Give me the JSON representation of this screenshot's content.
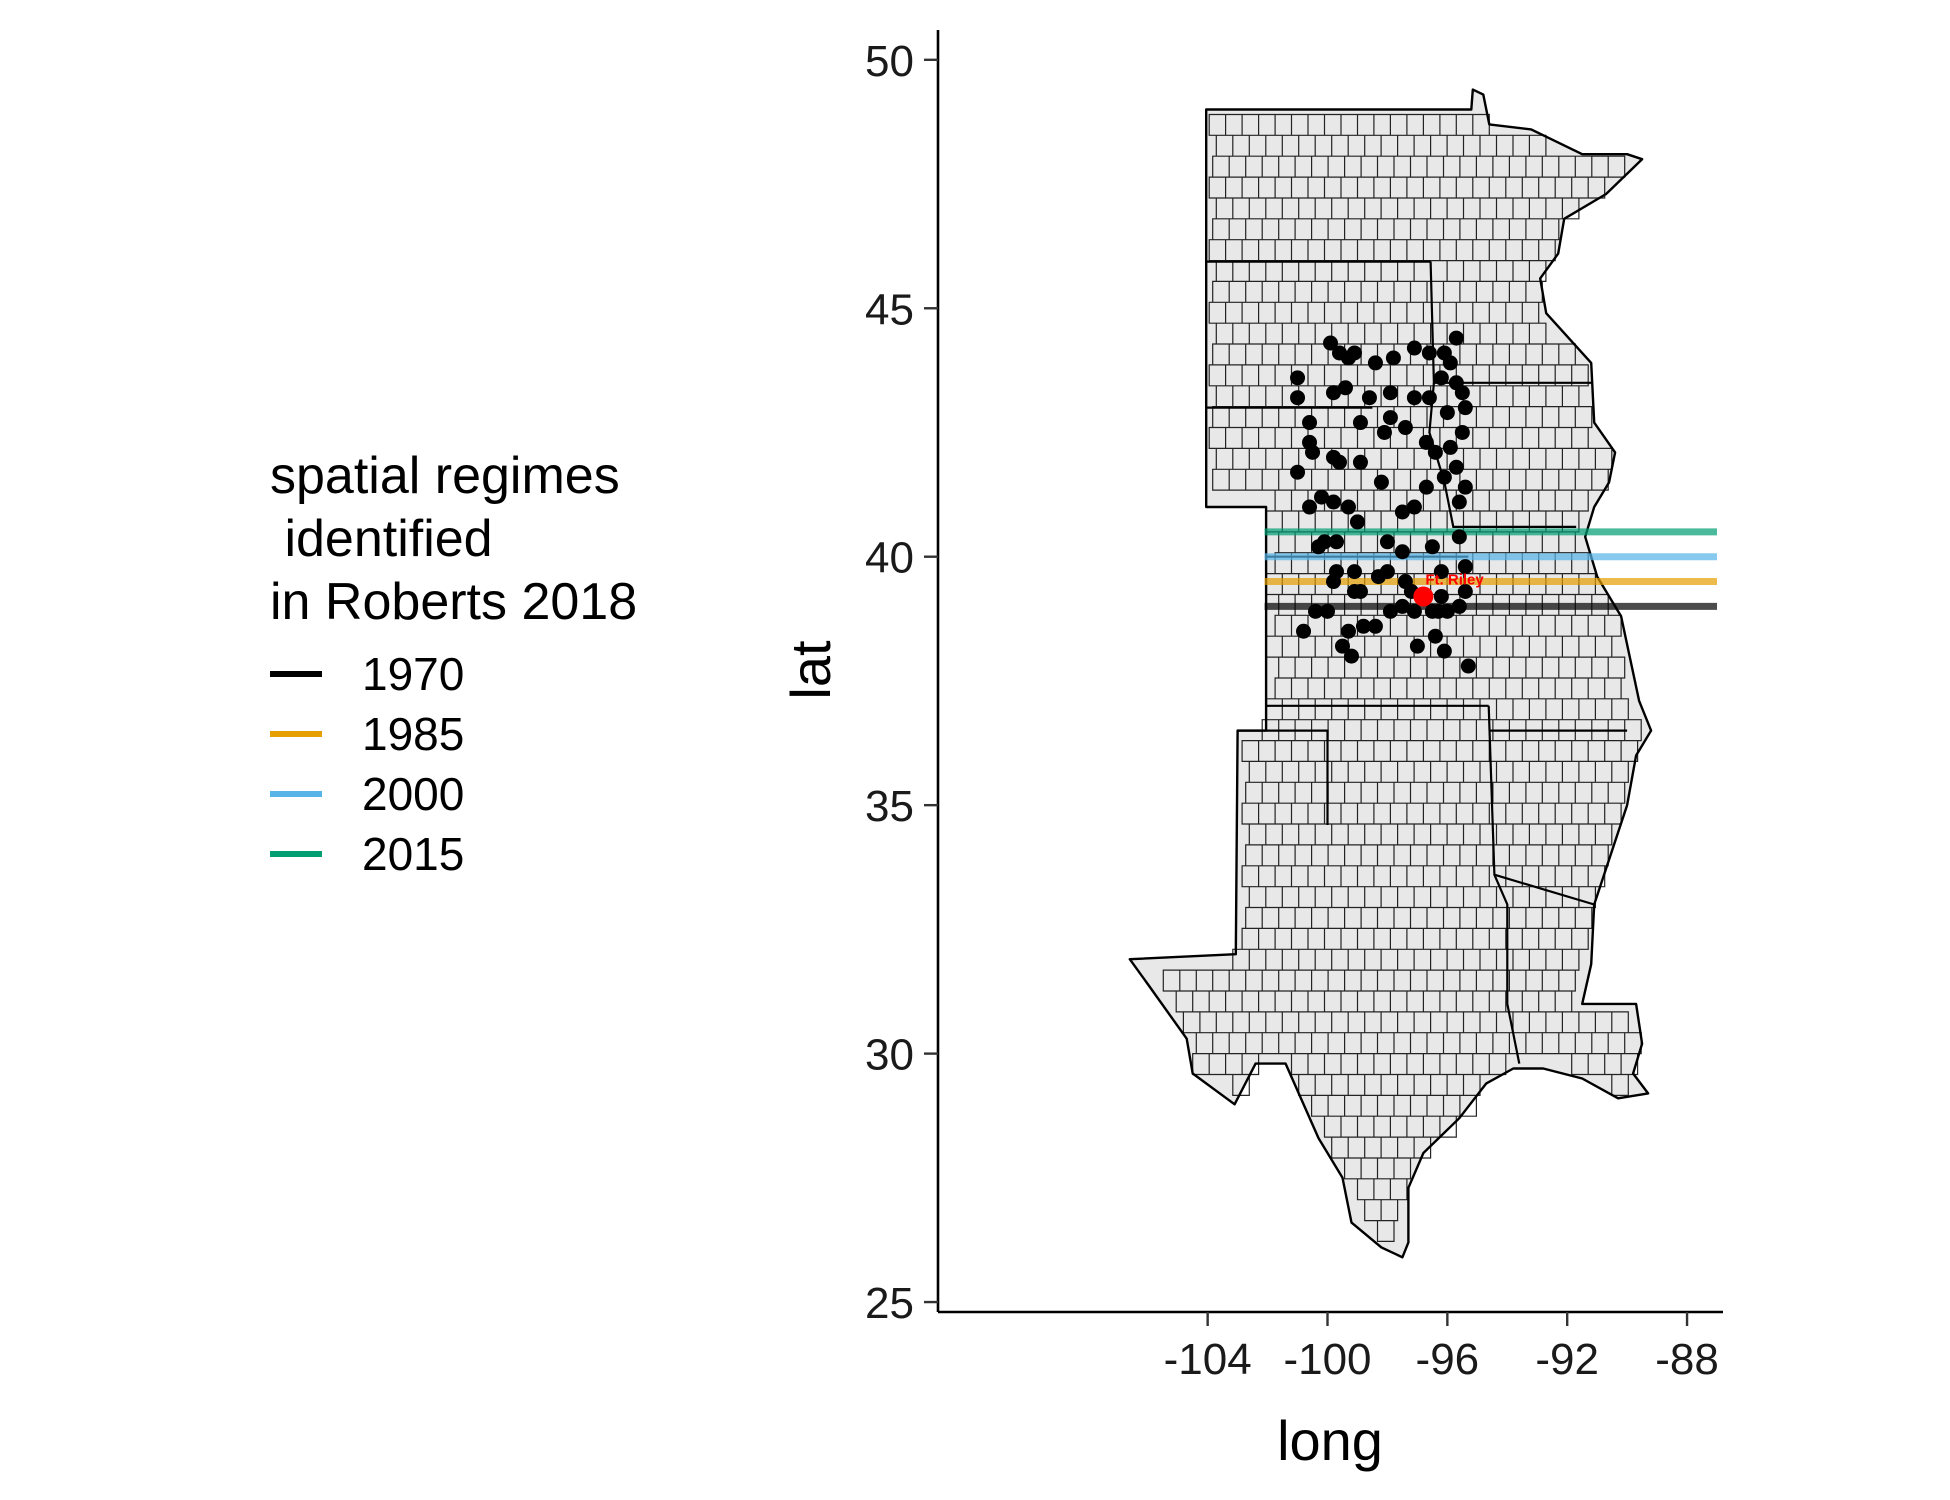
{
  "chart_data": {
    "type": "map",
    "xlabel": "long",
    "ylabel": "lat",
    "xlim": [
      -113.0,
      -86.8
    ],
    "ylim": [
      24.8,
      50.6
    ],
    "x_ticks": [
      -104,
      -100,
      -96,
      -92,
      -88
    ],
    "y_ticks": [
      25,
      30,
      35,
      40,
      45,
      50
    ],
    "x_tick_labels": [
      "-104",
      "-100",
      "-96",
      "-92",
      "-88"
    ],
    "y_tick_labels": [
      "25",
      "30",
      "35",
      "40",
      "45",
      "50"
    ],
    "legend": {
      "title": "spatial regimes\n identified\nin Roberts 2018",
      "placement": "left",
      "entries": [
        {
          "label": "1970",
          "color": "#000000"
        },
        {
          "label": "1985",
          "color": "#E69F00"
        },
        {
          "label": "2000",
          "color": "#56B4E9"
        },
        {
          "label": "2015",
          "color": "#009E73"
        }
      ]
    },
    "regime_lines": [
      {
        "year": "1970",
        "lat": 39.0,
        "color": "#000000"
      },
      {
        "year": "1985",
        "lat": 39.5,
        "color": "#E69F00"
      },
      {
        "year": "2000",
        "lat": 40.0,
        "color": "#56B4E9"
      },
      {
        "year": "2015",
        "lat": 40.5,
        "color": "#009E73"
      }
    ],
    "regime_line_xrange": [
      -102.1,
      -87.0
    ],
    "highlight_point": {
      "label": "Ft. Riley",
      "long": -96.8,
      "lat": 39.2,
      "color": "#FF0000"
    },
    "points": [
      [
        -101.0,
        43.6
      ],
      [
        -101.0,
        43.2
      ],
      [
        -100.6,
        42.7
      ],
      [
        -100.6,
        42.3
      ],
      [
        -101.0,
        41.7
      ],
      [
        -100.6,
        41.0
      ],
      [
        -100.2,
        41.2
      ],
      [
        -99.8,
        41.1
      ],
      [
        -99.3,
        41.0
      ],
      [
        -100.1,
        40.3
      ],
      [
        -99.7,
        40.3
      ],
      [
        -100.3,
        40.2
      ],
      [
        -99.7,
        39.7
      ],
      [
        -99.1,
        39.7
      ],
      [
        -99.8,
        39.5
      ],
      [
        -98.9,
        39.3
      ],
      [
        -99.1,
        39.3
      ],
      [
        -98.3,
        39.6
      ],
      [
        -98.0,
        39.7
      ],
      [
        -97.4,
        39.5
      ],
      [
        -97.2,
        39.3
      ],
      [
        -96.8,
        39.2
      ],
      [
        -96.2,
        39.2
      ],
      [
        -95.4,
        39.3
      ],
      [
        -95.6,
        39.0
      ],
      [
        -96.0,
        38.9
      ],
      [
        -96.5,
        38.9
      ],
      [
        -97.1,
        38.9
      ],
      [
        -97.5,
        39.0
      ],
      [
        -97.9,
        38.9
      ],
      [
        -98.8,
        38.6
      ],
      [
        -99.3,
        38.5
      ],
      [
        -99.5,
        38.2
      ],
      [
        -99.2,
        38.0
      ],
      [
        -98.4,
        38.6
      ],
      [
        -97.0,
        38.2
      ],
      [
        -96.4,
        38.4
      ],
      [
        -96.1,
        38.1
      ],
      [
        -95.3,
        37.8
      ],
      [
        -100.0,
        38.9
      ],
      [
        -100.4,
        38.9
      ],
      [
        -100.8,
        38.5
      ],
      [
        -99.9,
        44.3
      ],
      [
        -99.6,
        44.1
      ],
      [
        -99.3,
        44.0
      ],
      [
        -99.1,
        44.1
      ],
      [
        -98.4,
        43.9
      ],
      [
        -97.8,
        44.0
      ],
      [
        -97.1,
        44.2
      ],
      [
        -96.6,
        44.1
      ],
      [
        -96.1,
        44.1
      ],
      [
        -95.7,
        44.4
      ],
      [
        -95.9,
        43.9
      ],
      [
        -96.2,
        43.6
      ],
      [
        -95.7,
        43.5
      ],
      [
        -95.5,
        43.3
      ],
      [
        -95.4,
        43.0
      ],
      [
        -96.0,
        42.9
      ],
      [
        -96.6,
        43.2
      ],
      [
        -97.1,
        43.2
      ],
      [
        -97.9,
        43.3
      ],
      [
        -98.6,
        43.2
      ],
      [
        -99.4,
        43.4
      ],
      [
        -99.8,
        43.3
      ],
      [
        -98.9,
        42.7
      ],
      [
        -98.1,
        42.5
      ],
      [
        -97.4,
        42.6
      ],
      [
        -96.7,
        42.3
      ],
      [
        -96.4,
        42.1
      ],
      [
        -95.9,
        42.2
      ],
      [
        -95.5,
        42.5
      ],
      [
        -95.7,
        41.8
      ],
      [
        -95.4,
        41.4
      ],
      [
        -95.6,
        41.1
      ],
      [
        -96.1,
        41.6
      ],
      [
        -96.7,
        41.4
      ],
      [
        -97.1,
        41.0
      ],
      [
        -97.5,
        40.9
      ],
      [
        -98.2,
        41.5
      ],
      [
        -98.9,
        41.9
      ],
      [
        -99.6,
        41.9
      ],
      [
        -99.8,
        42.0
      ],
      [
        -98.0,
        40.3
      ],
      [
        -97.5,
        40.1
      ],
      [
        -96.5,
        40.2
      ],
      [
        -95.6,
        40.4
      ],
      [
        -95.4,
        39.8
      ],
      [
        -96.2,
        39.7
      ],
      [
        -97.9,
        42.8
      ],
      [
        -99.0,
        40.7
      ],
      [
        -100.5,
        42.1
      ],
      [
        -96.3,
        38.9
      ]
    ],
    "map_regions": "US counties of TX, OK, KS, NE, SD, ND, MN, IA, MO, AR, LA, CO/WY strip"
  }
}
